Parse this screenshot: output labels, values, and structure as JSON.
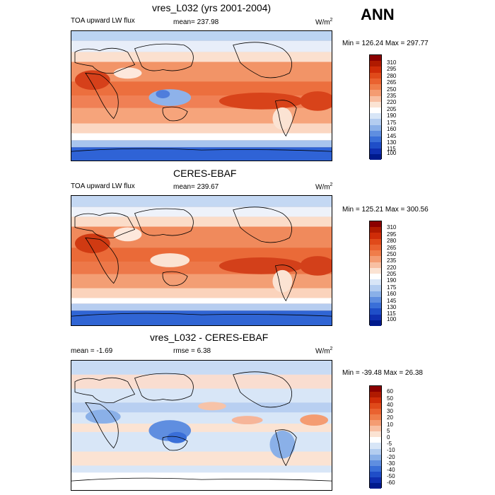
{
  "season": "ANN",
  "panels": [
    {
      "title": "vres_L032 (yrs 2001-2004)",
      "left_label": "TOA upward LW flux",
      "center_label": "mean= 237.98",
      "units": "W/m",
      "units_sup": "2",
      "minmax": "Min = 126.24 Max = 297.77",
      "colorbar": {
        "labels": [
          "310",
          "295",
          "280",
          "265",
          "250",
          "235",
          "220",
          "205",
          "190",
          "175",
          "160",
          "145",
          "130",
          "115",
          "100"
        ],
        "colors": [
          "#8b0000",
          "#b01a00",
          "#cf2c08",
          "#e04a1a",
          "#ea6230",
          "#f07d4a",
          "#f49c72",
          "#f8bfa2",
          "#fbe3d3",
          "#ffffff",
          "#d8e6f7",
          "#b3cdf0",
          "#8ab0e8",
          "#5f8ee0",
          "#3a6fd8",
          "#1f4ec8",
          "#0f2fb0",
          "#001a8c"
        ]
      }
    },
    {
      "title": "CERES-EBAF",
      "left_label": "TOA upward LW flux",
      "center_label": "mean= 239.67",
      "units": "W/m",
      "units_sup": "2",
      "minmax": "Min = 125.21 Max = 300.56",
      "colorbar": {
        "labels": [
          "310",
          "295",
          "280",
          "265",
          "250",
          "235",
          "220",
          "205",
          "190",
          "175",
          "160",
          "145",
          "130",
          "115",
          "100"
        ],
        "colors": [
          "#8b0000",
          "#b01a00",
          "#cf2c08",
          "#e04a1a",
          "#ea6230",
          "#f07d4a",
          "#f49c72",
          "#f8bfa2",
          "#fbe3d3",
          "#ffffff",
          "#d8e6f7",
          "#b3cdf0",
          "#8ab0e8",
          "#5f8ee0",
          "#3a6fd8",
          "#1f4ec8",
          "#0f2fb0",
          "#001a8c"
        ]
      }
    },
    {
      "title": "vres_L032 - CERES-EBAF",
      "left_label": "mean =  -1.69",
      "center_label": "rmse =   6.38",
      "units": "W/m",
      "units_sup": "2",
      "minmax": "Min = -39.48 Max =  26.38",
      "colorbar": {
        "labels": [
          "60",
          "50",
          "40",
          "30",
          "20",
          "10",
          "5",
          "0",
          "-5",
          "-10",
          "-20",
          "-30",
          "-40",
          "-50",
          "-60"
        ],
        "colors": [
          "#8b0000",
          "#b01a00",
          "#cf2c08",
          "#e04a1a",
          "#ea6230",
          "#f07d4a",
          "#f49c72",
          "#f8bfa2",
          "#fbe3d3",
          "#ffffff",
          "#d8e6f7",
          "#b3cdf0",
          "#8ab0e8",
          "#5f8ee0",
          "#3a6fd8",
          "#1f4ec8",
          "#0f2fb0",
          "#001a8c"
        ]
      }
    }
  ]
}
